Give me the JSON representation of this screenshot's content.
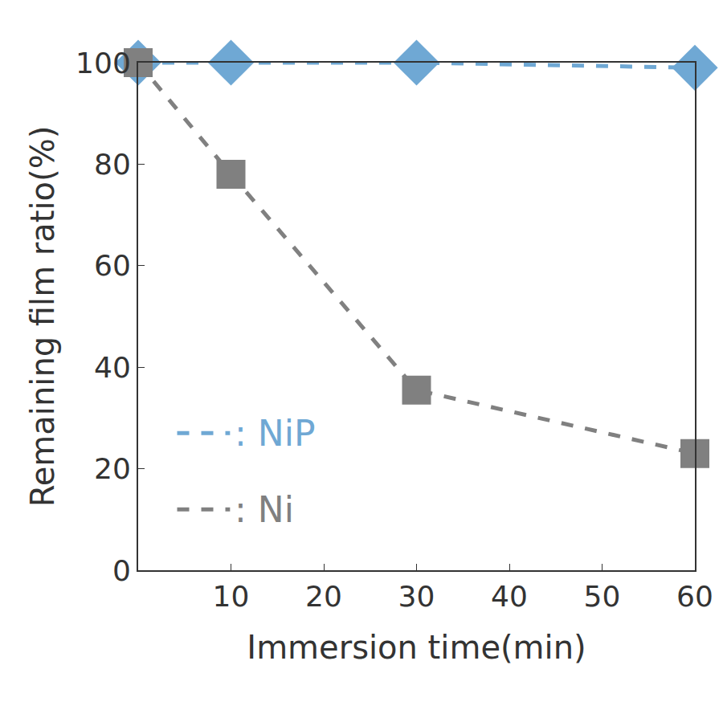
{
  "chart_data": {
    "type": "line",
    "x_label": "Immersion time(min)",
    "y_label": "Remaining film ratio(%)",
    "x": [
      0,
      10,
      30,
      60
    ],
    "series": [
      {
        "name": ": NiP",
        "color": "#6fa8d4",
        "marker": "diamond",
        "line_style": "dash",
        "values": [
          100,
          100,
          100,
          99
        ]
      },
      {
        "name": ": Ni",
        "color": "#808080",
        "marker": "square",
        "line_style": "dash",
        "values": [
          100,
          78,
          35.5,
          23
        ]
      }
    ],
    "xlim": [
      0,
      60
    ],
    "xticks": [
      10,
      20,
      30,
      40,
      50,
      60
    ],
    "ylim": [
      0,
      100
    ],
    "yticks": [
      0,
      20,
      40,
      60,
      80,
      100
    ],
    "grid": false,
    "legend": "lower left"
  }
}
